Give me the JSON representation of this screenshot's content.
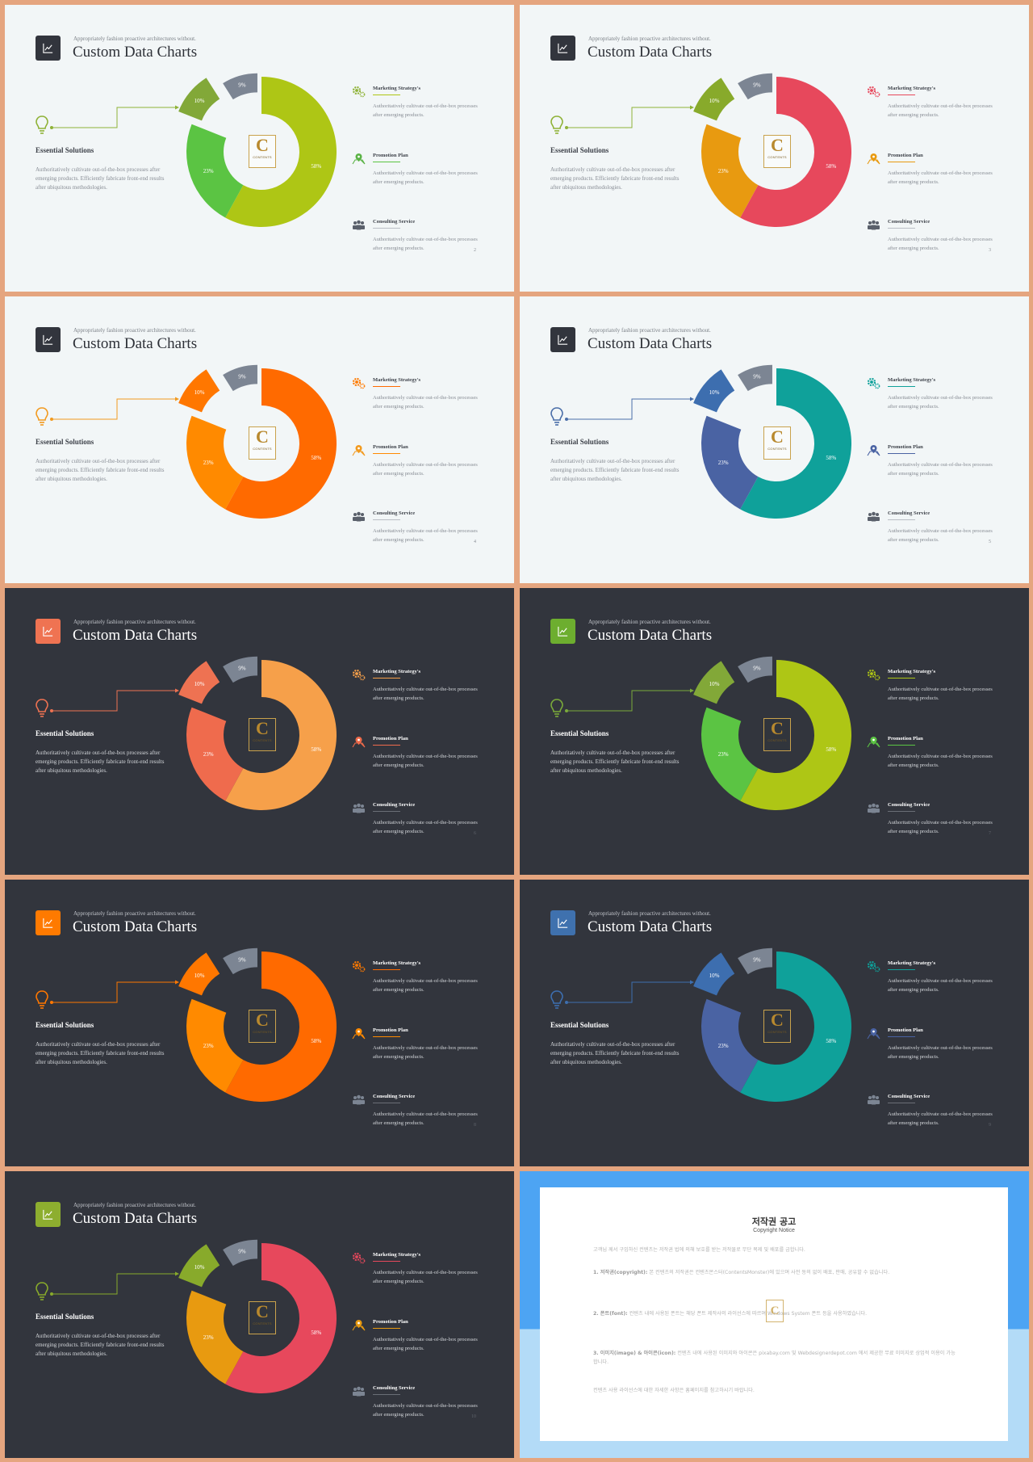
{
  "common": {
    "title": "Custom Data Charts",
    "subtitle": "Appropriately fashion proactive architectures without.",
    "left_heading": "Essential Solutions",
    "left_body": "Authoritatively cultivate out-of-the-box processes after emerging products. Efficiently fabricate front-end results after ubiquitous methodologies.",
    "features": [
      {
        "title": "Marketing Strategy's",
        "body": "Authoritatively cultivate out-of-the-box processes after emerging products.",
        "icon": "gears-icon"
      },
      {
        "title": "Promotion Plan",
        "body": "Authoritatively cultivate out-of-the-box processes after emerging products.",
        "icon": "map-pin-icon"
      },
      {
        "title": "Consulting Service",
        "body": "Authoritatively cultivate out-of-the-box processes after emerging products.",
        "icon": "people-icon"
      }
    ],
    "logo_letter": "C",
    "logo_text": "CONTENTS"
  },
  "chart_data": {
    "type": "pie",
    "variant": "donut with exploded segments",
    "categories": [
      "58%",
      "23%",
      "10%",
      "9%"
    ],
    "values": [
      58,
      23,
      10,
      9
    ],
    "labels": [
      "58%",
      "23%",
      "10%",
      "9%"
    ]
  },
  "slides": [
    {
      "page": "2",
      "theme": "light",
      "colors": [
        "#aec615",
        "#5bc443",
        "#82a838",
        "#7c8593"
      ],
      "accent": "#8fb237",
      "badge": "#32353d",
      "icons": [
        "#8fb237",
        "#5bb346",
        "#5a606b"
      ]
    },
    {
      "page": "3",
      "theme": "light",
      "colors": [
        "#e7485c",
        "#e89a10",
        "#88aa2b",
        "#7c8593"
      ],
      "accent": "#8fb237",
      "badge": "#32353d",
      "icons": [
        "#e7485c",
        "#e89a10",
        "#5a606b"
      ]
    },
    {
      "page": "4",
      "theme": "light",
      "colors": [
        "#ff6a00",
        "#ff8a00",
        "#ff7700",
        "#7c8593"
      ],
      "accent": "#f29a1f",
      "badge": "#32353d",
      "icons": [
        "#ff7a00",
        "#f29a1f",
        "#5a606b"
      ]
    },
    {
      "page": "5",
      "theme": "light",
      "colors": [
        "#0fa19a",
        "#4a63a3",
        "#3d6eaf",
        "#7c8593"
      ],
      "accent": "#4a6ea8",
      "badge": "#32353d",
      "icons": [
        "#0fa19a",
        "#4a63a3",
        "#5a606b"
      ]
    },
    {
      "page": "6",
      "theme": "dark",
      "colors": [
        "#f6a04a",
        "#ef6b4d",
        "#ee7252",
        "#7c8593"
      ],
      "accent": "#ee7252",
      "badge": "#ef7352",
      "icons": [
        "#f6a04a",
        "#ee6a4a",
        "#7c8593"
      ]
    },
    {
      "page": "7",
      "theme": "dark",
      "colors": [
        "#aec615",
        "#5bc443",
        "#82a838",
        "#7c8593"
      ],
      "accent": "#7aaa3a",
      "badge": "#6dae2f",
      "icons": [
        "#aec615",
        "#5bc443",
        "#7c8593"
      ]
    },
    {
      "page": "8",
      "theme": "dark",
      "colors": [
        "#ff6a00",
        "#ff8a00",
        "#ff7700",
        "#7c8593"
      ],
      "accent": "#ff7700",
      "badge": "#ff7a00",
      "icons": [
        "#ff7a00",
        "#ff8a00",
        "#7c8593"
      ]
    },
    {
      "page": "9",
      "theme": "dark",
      "colors": [
        "#0fa19a",
        "#4a63a3",
        "#3d6eaf",
        "#7c8593"
      ],
      "accent": "#3d6eaf",
      "badge": "#3f71ae",
      "icons": [
        "#0fa19a",
        "#4a63a3",
        "#7c8593"
      ]
    },
    {
      "page": "10",
      "theme": "dark",
      "colors": [
        "#e7485c",
        "#e89a10",
        "#88aa2b",
        "#7c8593"
      ],
      "accent": "#88aa2b",
      "badge": "#8dae2f",
      "icons": [
        "#e7485c",
        "#e89a10",
        "#7c8593"
      ]
    }
  ],
  "notice": {
    "title": "저작권 공고",
    "subtitle": "Copyright Notice",
    "intro": "고객님 께서 구입하신 컨텐츠는 저작권 법에 의해 보호를 받는 저작물로 무단 복제 및 배포를 금합니다.",
    "sec1_head": "1. 저작권(copyright):",
    "sec1_body": "본 컨텐츠의 저작권은 컨텐츠몬스터(ContentsMonster)에 있으며 사전 동의 없이 배포, 판매, 공유할 수 없습니다.",
    "sec2_head": "2. 폰트(font):",
    "sec2_body": "컨텐츠 내에 사용된 폰트는 해당 폰트 제작사의 라이선스에 따르며 Windows System 폰트 등을 사용하였습니다.",
    "sec3_head": "3. 이미지(image) & 아이콘(icon):",
    "sec3_body": "컨텐츠 내에 사용된 이미지와 아이콘은 pixabay.com 및 Webdesignerdepot.com 에서 제공한 무료 이미지로 상업적 이용이 가능합니다.",
    "outro": "컨텐츠 사용 라이선스에 대한 자세한 사항은 홈페이지를 참고하시기 바랍니다."
  }
}
